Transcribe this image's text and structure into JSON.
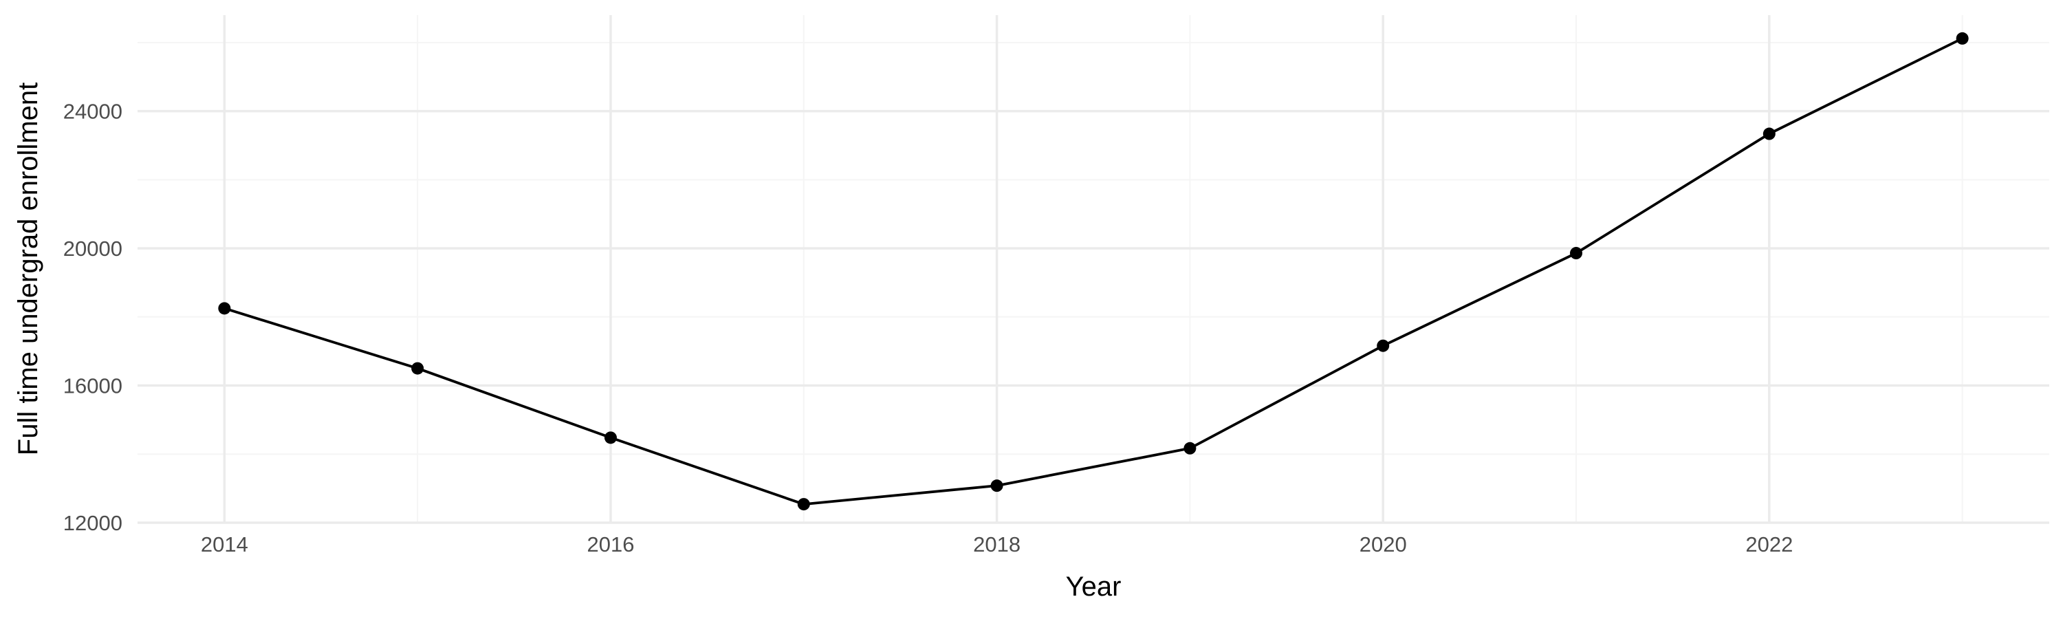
{
  "chart_data": {
    "type": "line",
    "title": "",
    "xlabel": "Year",
    "ylabel": "Full time undergrad enrollment",
    "x": [
      2014,
      2015,
      2016,
      2017,
      2018,
      2019,
      2020,
      2021,
      2022,
      2023
    ],
    "series": [
      {
        "values": [
          18250,
          16500,
          14480,
          12540,
          13080,
          14170,
          17160,
          19860,
          23340,
          26120
        ]
      }
    ],
    "xlim": [
      2013.55,
      2023.45
    ],
    "ylim": [
      12000,
      26800
    ],
    "x_ticks": [
      2014,
      2016,
      2018,
      2020,
      2022
    ],
    "x_tick_labels": [
      "2014",
      "2016",
      "2018",
      "2020",
      "2022"
    ],
    "y_ticks": [
      12000,
      16000,
      20000,
      24000
    ],
    "y_tick_labels": [
      "12000",
      "16000",
      "20000",
      "24000"
    ],
    "grid": true,
    "colors": {
      "line": "#000000",
      "point": "#000000",
      "grid_major": "#ebebeb",
      "grid_minor": "#f5f5f5",
      "tick_text": "#4d4d4d"
    }
  }
}
